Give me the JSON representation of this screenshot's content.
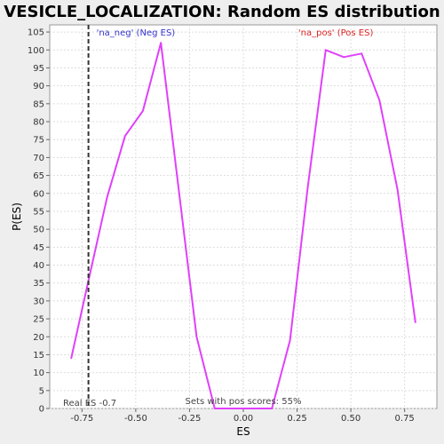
{
  "chart_data": {
    "type": "line",
    "title": "VESICLE_LOCALIZATION: Random ES distribution",
    "xlabel": "ES",
    "ylabel": "P(ES)",
    "xlim": [
      -0.9,
      0.9
    ],
    "ylim": [
      0,
      107
    ],
    "x_ticks": [
      -0.75,
      -0.5,
      -0.25,
      0.0,
      0.25,
      0.5,
      0.75
    ],
    "x_tick_labels": [
      "-0.75",
      "-0.50",
      "-0.25",
      "0.00",
      "0.25",
      "0.50",
      "0.75"
    ],
    "y_ticks": [
      0,
      5,
      10,
      15,
      20,
      25,
      30,
      35,
      40,
      45,
      50,
      55,
      60,
      65,
      70,
      75,
      80,
      85,
      90,
      95,
      100,
      105
    ],
    "y_tick_labels": [
      "0",
      "5",
      "10",
      "15",
      "20",
      "25",
      "30",
      "35",
      "40",
      "45",
      "50",
      "55",
      "60",
      "65",
      "70",
      "75",
      "80",
      "85",
      "90",
      "95",
      "100",
      "105"
    ],
    "grid": true,
    "series": [
      {
        "color": "#e040fb",
        "x": [
          -0.8,
          -0.715,
          -0.633,
          -0.55,
          -0.467,
          -0.383,
          -0.3,
          -0.217,
          -0.133,
          -0.05,
          0.05,
          0.133,
          0.217,
          0.3,
          0.383,
          0.467,
          0.55,
          0.633,
          0.717,
          0.8
        ],
        "y": [
          14,
          37,
          59,
          76,
          83,
          102,
          61,
          20,
          0,
          0,
          0,
          0,
          19,
          62,
          100,
          98,
          99,
          86,
          61,
          24
        ]
      }
    ],
    "real_es": -0.72,
    "annotations": {
      "neg": "'na_neg' (Neg ES)",
      "pos": "'na_pos' (Pos ES)",
      "real_es": "Real ES -0.7",
      "pos_scores": "Sets with pos scores: 55%"
    },
    "colors": {
      "neg": "#3333cc",
      "pos": "#dd2222",
      "real_es_line": "#333333",
      "grid": "#dddddd"
    }
  }
}
